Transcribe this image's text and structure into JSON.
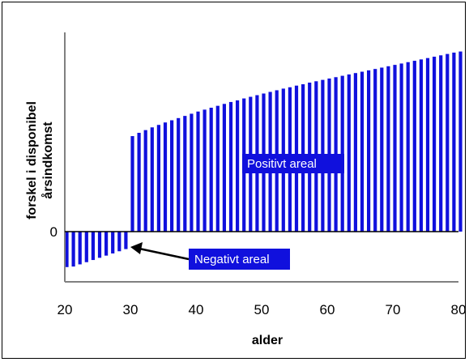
{
  "chart_data": {
    "type": "bar",
    "title": "",
    "xlabel": "alder",
    "ylabel_lines": [
      "forskel i disponibel",
      "årsindkomst"
    ],
    "x_ticks": [
      20,
      30,
      40,
      50,
      60,
      70,
      80
    ],
    "y_ticks": [
      {
        "value": 0,
        "label": "0"
      }
    ],
    "xlim": [
      20,
      80
    ],
    "ylim": [
      -0.2,
      0.73
    ],
    "grid": false,
    "series": [
      {
        "x": [
          20,
          21,
          22,
          23,
          24,
          25,
          26,
          27,
          28,
          29,
          30,
          31,
          32,
          33,
          34,
          35,
          36,
          37,
          38,
          39,
          40,
          41,
          42,
          43,
          44,
          45,
          46,
          47,
          48,
          49,
          50,
          51,
          52,
          53,
          54,
          55,
          56,
          57,
          58,
          59,
          60,
          61,
          62,
          63,
          64,
          65,
          66,
          67,
          68,
          69,
          70,
          71,
          72,
          73,
          74,
          75,
          76,
          77,
          78,
          79,
          80
        ],
        "values": [
          -0.13,
          -0.128,
          -0.12,
          -0.112,
          -0.104,
          -0.096,
          -0.088,
          -0.08,
          -0.072,
          -0.064,
          0.35,
          0.362,
          0.372,
          0.382,
          0.391,
          0.4,
          0.408,
          0.416,
          0.424,
          0.432,
          0.44,
          0.447,
          0.454,
          0.461,
          0.468,
          0.475,
          0.481,
          0.488,
          0.494,
          0.5,
          0.506,
          0.512,
          0.518,
          0.524,
          0.529,
          0.535,
          0.54,
          0.546,
          0.551,
          0.556,
          0.561,
          0.566,
          0.571,
          0.576,
          0.581,
          0.586,
          0.591,
          0.596,
          0.601,
          0.606,
          0.611,
          0.616,
          0.621,
          0.626,
          0.631,
          0.636,
          0.641,
          0.646,
          0.651,
          0.656,
          0.66
        ]
      }
    ],
    "bar_color": "#1010dd",
    "annotations": {
      "positive": "Positivt areal",
      "negative": "Negativt areal"
    }
  }
}
